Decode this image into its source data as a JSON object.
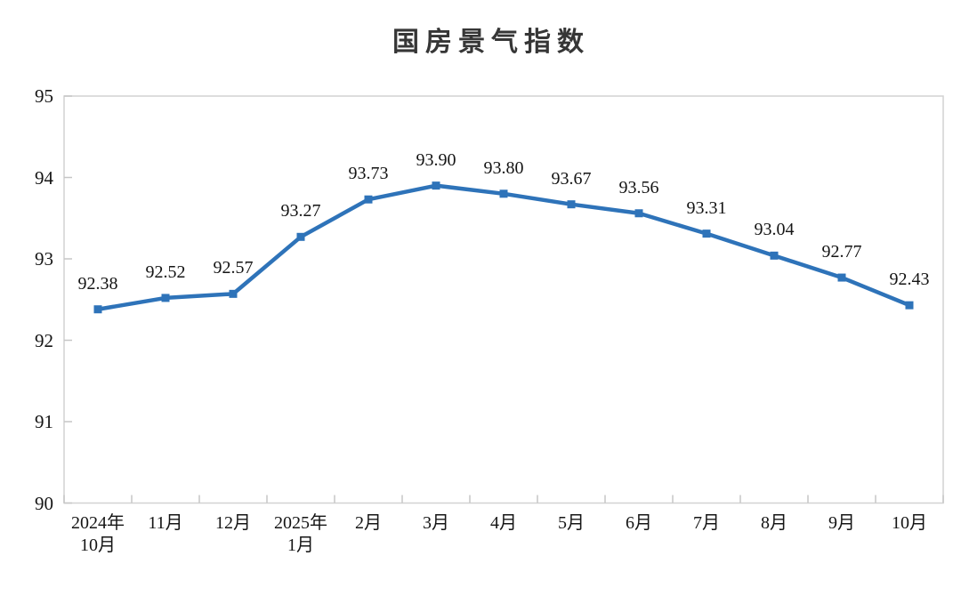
{
  "chart_data": {
    "type": "line",
    "title": "国房景气指数",
    "categories": [
      [
        "2024年",
        "10月"
      ],
      [
        "11月"
      ],
      [
        "12月"
      ],
      [
        "2025年",
        "1月"
      ],
      [
        "2月"
      ],
      [
        "3月"
      ],
      [
        "4月"
      ],
      [
        "5月"
      ],
      [
        "6月"
      ],
      [
        "7月"
      ],
      [
        "8月"
      ],
      [
        "9月"
      ],
      [
        "10月"
      ]
    ],
    "values": [
      92.38,
      92.52,
      92.57,
      93.27,
      93.73,
      93.9,
      93.8,
      93.67,
      93.56,
      93.31,
      93.04,
      92.77,
      92.43
    ],
    "data_labels": [
      "92.38",
      "92.52",
      "92.57",
      "93.27",
      "93.73",
      "93.90",
      "93.80",
      "93.67",
      "93.56",
      "93.31",
      "93.04",
      "92.77",
      "92.43"
    ],
    "ylim": [
      90,
      95
    ],
    "yticks": [
      90,
      91,
      92,
      93,
      94,
      95
    ],
    "ytick_labels": [
      "90",
      "91",
      "92",
      "93",
      "94",
      "95"
    ],
    "grid": false,
    "legend": "none",
    "marker": "square",
    "line_color": "#2E73B9",
    "marker_color": "#2E73B9",
    "border_color": "#d2d2d2",
    "tick_color": "#c6c6c6",
    "label_color": "#141414",
    "title_color": "#363636"
  }
}
